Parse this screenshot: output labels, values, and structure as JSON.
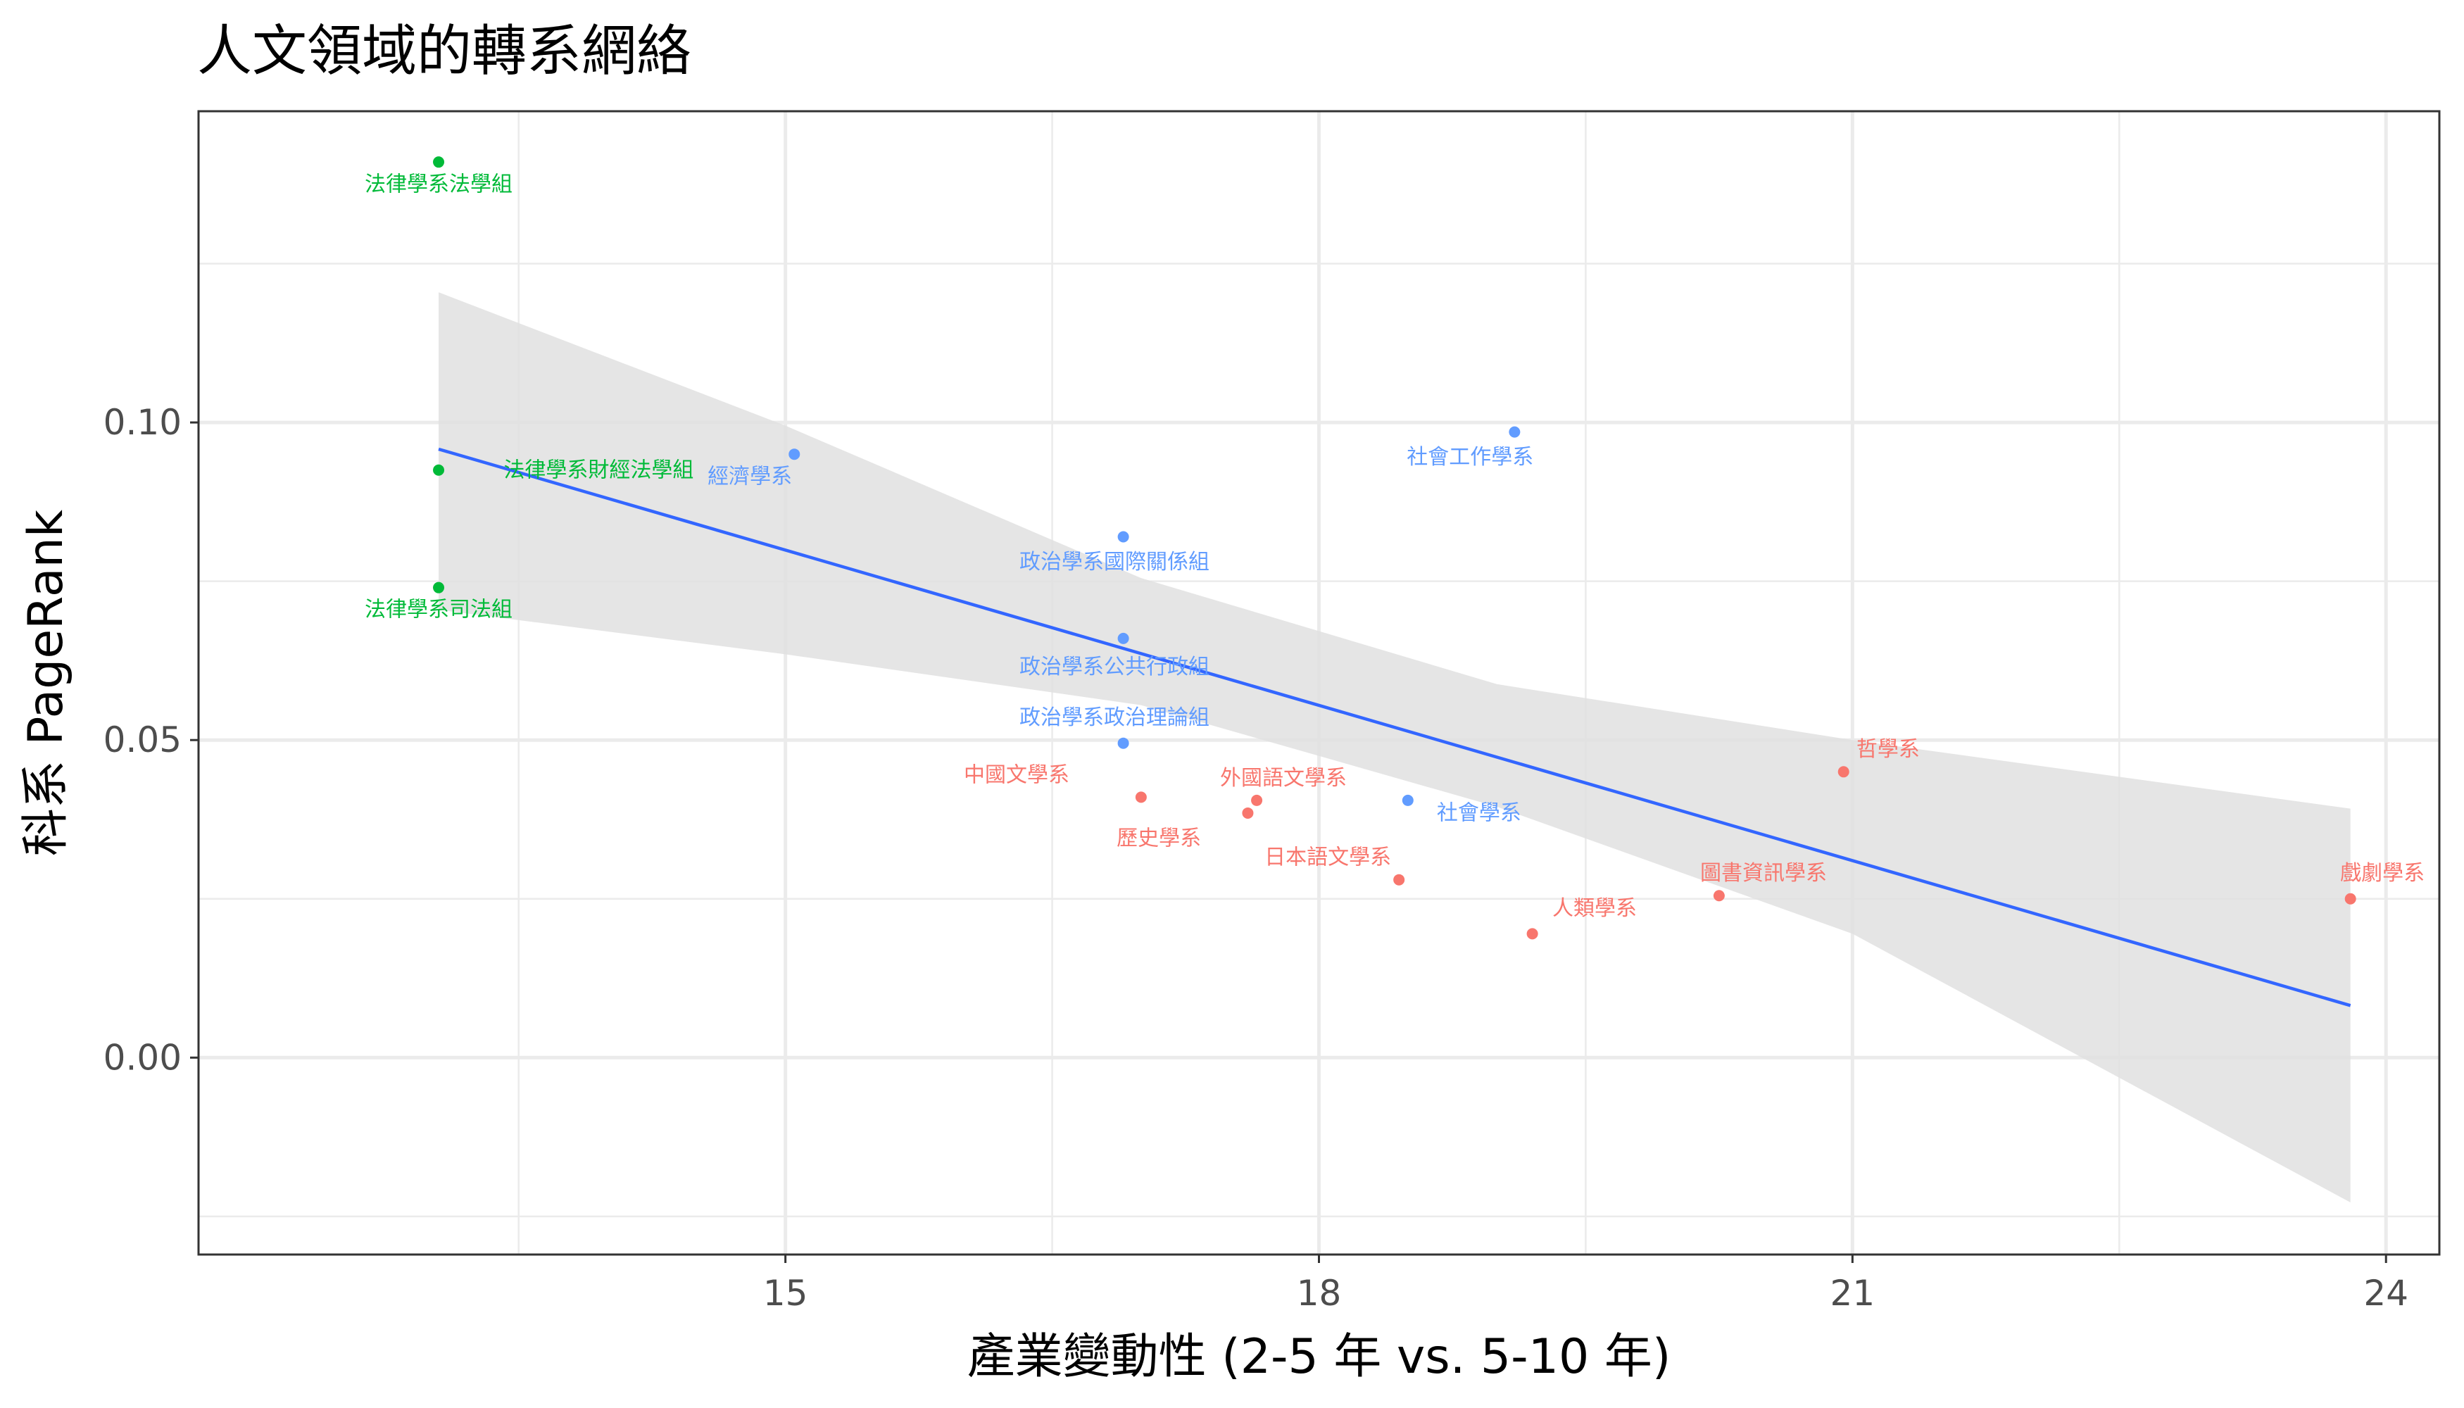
{
  "title": "人文領域的轉系網絡",
  "chart_data": {
    "type": "scatter",
    "title": "人文領域的轉系網絡",
    "xlabel": "產業變動性 (2-5 年 vs. 5-10 年)",
    "ylabel": "科系 PageRank",
    "xlim": [
      11.7,
      24.3
    ],
    "ylim": [
      -0.031,
      0.149
    ],
    "xticks": [
      15,
      18,
      21,
      24
    ],
    "xtick_labels": [
      "15",
      "18",
      "21",
      "24"
    ],
    "yticks": [
      0.0,
      0.05,
      0.1
    ],
    "ytick_labels": [
      "0.00",
      "0.05",
      "0.10"
    ],
    "grid": true,
    "legend": "none",
    "colors": {
      "green": "#00BA38",
      "blue": "#619CFF",
      "red": "#F8766D",
      "fit": "#3366FF",
      "band": "#e0e0e0"
    },
    "points": [
      {
        "label": "法律學系法學組",
        "x": 13.05,
        "y": 0.141,
        "color": "green",
        "lx": 13.05,
        "ly": 0.1375
      },
      {
        "label": "法律學系財經法學組",
        "x": 13.05,
        "y": 0.0925,
        "color": "green",
        "lx": 13.95,
        "ly": 0.0925
      },
      {
        "label": "法律學系司法組",
        "x": 13.05,
        "y": 0.074,
        "color": "green",
        "lx": 13.05,
        "ly": 0.0705
      },
      {
        "label": "經濟學系",
        "x": 15.05,
        "y": 0.095,
        "color": "blue",
        "lx": 14.8,
        "ly": 0.0915
      },
      {
        "label": "社會工作學系",
        "x": 19.1,
        "y": 0.0985,
        "color": "blue",
        "lx": 18.85,
        "ly": 0.0945
      },
      {
        "label": "政治學系國際關係組",
        "x": 16.9,
        "y": 0.082,
        "color": "blue",
        "lx": 16.85,
        "ly": 0.078
      },
      {
        "label": "政治學系公共行政組",
        "x": 16.9,
        "y": 0.066,
        "color": "blue",
        "lx": 16.85,
        "ly": 0.0615
      },
      {
        "label": "政治學系政治理論組",
        "x": 16.9,
        "y": 0.0495,
        "color": "blue",
        "lx": 16.85,
        "ly": 0.0535
      },
      {
        "label": "社會學系",
        "x": 18.5,
        "y": 0.0405,
        "color": "blue",
        "lx": 18.9,
        "ly": 0.0385
      },
      {
        "label": "中國文學系",
        "x": 17.0,
        "y": 0.041,
        "color": "red",
        "lx": 16.3,
        "ly": 0.0445
      },
      {
        "label": "外國語文學系",
        "x": 17.65,
        "y": 0.0405,
        "color": "red",
        "lx": 17.8,
        "ly": 0.044
      },
      {
        "label": "歷史學系",
        "x": 17.6,
        "y": 0.0385,
        "color": "red",
        "lx": 17.1,
        "ly": 0.0345
      },
      {
        "label": "日本語文學系",
        "x": 18.45,
        "y": 0.028,
        "color": "red",
        "lx": 18.05,
        "ly": 0.0315
      },
      {
        "label": "人類學系",
        "x": 19.2,
        "y": 0.0195,
        "color": "red",
        "lx": 19.55,
        "ly": 0.0235
      },
      {
        "label": "圖書資訊學系",
        "x": 20.25,
        "y": 0.0255,
        "color": "red",
        "lx": 20.5,
        "ly": 0.029
      },
      {
        "label": "哲學系",
        "x": 20.95,
        "y": 0.045,
        "color": "red",
        "lx": 21.2,
        "ly": 0.0485
      },
      {
        "label": "戲劇學系",
        "x": 23.8,
        "y": 0.025,
        "color": "red",
        "lx": 23.98,
        "ly": 0.029
      }
    ],
    "fit_line": {
      "x": [
        13.05,
        23.8
      ],
      "y": [
        0.0958,
        0.0082
      ]
    },
    "confidence_band": {
      "x": [
        13.05,
        15.0,
        17.0,
        19.0,
        21.0,
        23.8
      ],
      "upper": [
        0.1205,
        0.0995,
        0.0755,
        0.0588,
        0.05,
        0.0392
      ],
      "lower": [
        0.0705,
        0.0635,
        0.0555,
        0.0395,
        0.0195,
        -0.0228
      ]
    }
  }
}
